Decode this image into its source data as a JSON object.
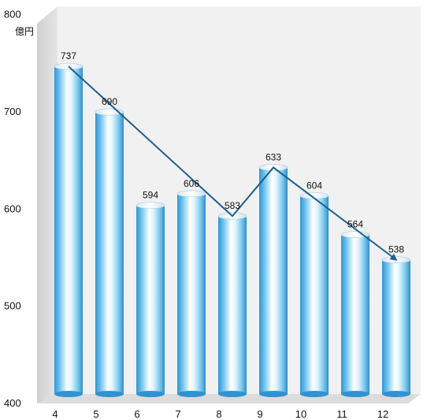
{
  "chart_data": {
    "type": "bar",
    "style": "3d-cylinder with trend-arrow line",
    "title": "",
    "xlabel": "",
    "ylabel": "",
    "y_unit": "億円",
    "categories": [
      "4",
      "5",
      "6",
      "7",
      "8",
      "9",
      "10",
      "11",
      "12"
    ],
    "values": [
      737,
      690,
      594,
      606,
      583,
      633,
      604,
      564,
      538
    ],
    "data_labels": [
      "737",
      "690",
      "594",
      "606",
      "583",
      "633",
      "604",
      "564",
      "538"
    ],
    "ylim": [
      400,
      800
    ],
    "yticks": [
      "400",
      "500",
      "600",
      "700",
      "800"
    ],
    "trend_line": {
      "points": [
        {
          "x": "4",
          "y": 737
        },
        {
          "x": "8",
          "y": 583
        },
        {
          "x": "9",
          "y": 633
        },
        {
          "x": "12",
          "y": 538
        }
      ],
      "arrowhead": "end"
    },
    "grid": false,
    "legend": "none",
    "colors": {
      "bar_edge": "#3aa0d8",
      "bar_center": "#ffffff",
      "trend_line": "#1b5f8c",
      "wall_back": "#f1f1f1",
      "wall_side": "#d9d9d9",
      "floor": "#dcdcdc"
    }
  }
}
